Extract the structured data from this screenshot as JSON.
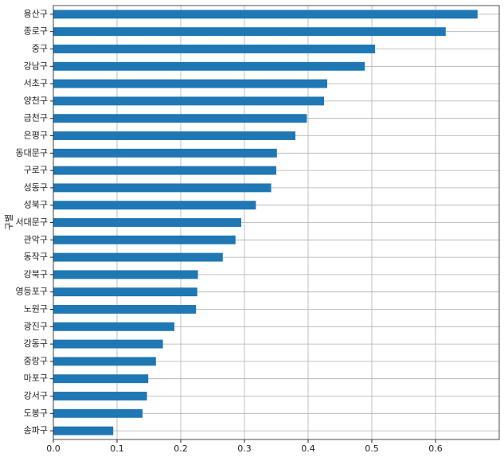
{
  "chart_data": {
    "type": "barh",
    "y_label": "구별",
    "categories": [
      "용산구",
      "종로구",
      "중구",
      "강남구",
      "서초구",
      "양천구",
      "금천구",
      "은평구",
      "동대문구",
      "구로구",
      "성동구",
      "성북구",
      "서대문구",
      "관악구",
      "동작구",
      "강북구",
      "영등포구",
      "노원구",
      "광진구",
      "강동구",
      "중랑구",
      "마포구",
      "강서구",
      "도봉구",
      "송파구"
    ],
    "values": [
      0.666,
      0.616,
      0.505,
      0.489,
      0.43,
      0.425,
      0.398,
      0.38,
      0.351,
      0.35,
      0.342,
      0.318,
      0.295,
      0.286,
      0.266,
      0.227,
      0.226,
      0.224,
      0.19,
      0.172,
      0.161,
      0.149,
      0.147,
      0.14,
      0.094
    ],
    "color": "#1f77b4",
    "xlim": [
      0,
      0.7
    ],
    "xticks": [
      {
        "value": 0,
        "label": "0.0"
      },
      0.1,
      0.2,
      0.3,
      0.4,
      0.5,
      0.6
    ],
    "grid": true
  }
}
